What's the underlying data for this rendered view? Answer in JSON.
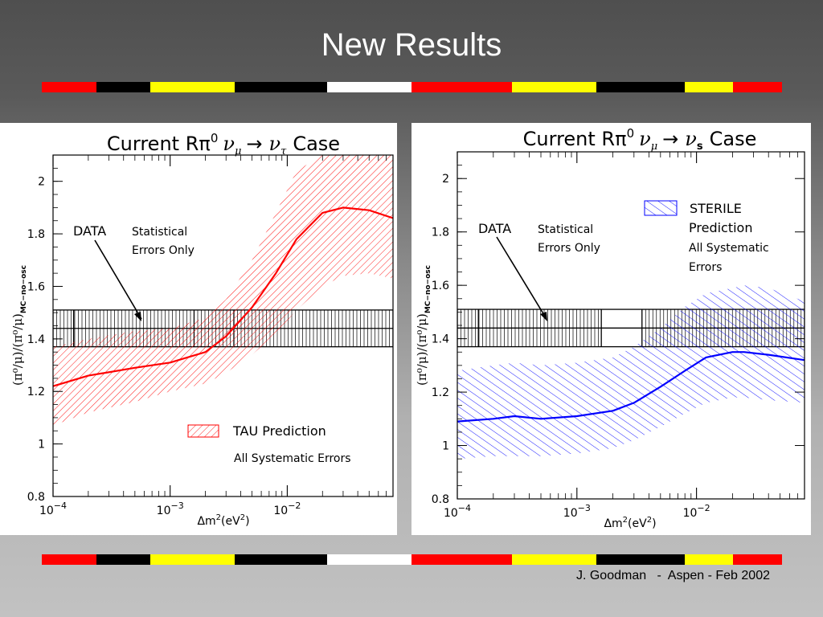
{
  "slide": {
    "title": "New Results",
    "footer": "J. Goodman   -  Aspen - Feb 2002",
    "stripe_colors": [
      "#ff0000",
      "#000000",
      "#ffff00",
      "#ffffff"
    ]
  },
  "chart_data": [
    {
      "type": "line",
      "title": "Current Rπ⁰ νμ → ντ Case",
      "title_parts": {
        "prefix": "Current Rπ",
        "sup": "0",
        "nu1": "ν",
        "sub1": "μ",
        "arrow": "→",
        "nu2": "ν",
        "sub2": "τ",
        "suffix": "Case"
      },
      "xlabel": "Δm²(eV²)",
      "xlabel_parts": {
        "delta": "Δm",
        "sup1": "2",
        "mid": "(eV",
        "sup2": "2",
        "end": ")"
      },
      "ylabel": "(π⁰/μ)/(π⁰/μ)MC−no−osc",
      "ylabel_parts": {
        "main": "(π⁰/μ)/(π⁰/μ)",
        "sub": "MC−no−osc"
      },
      "x_scale": "log",
      "xlim": [
        0.0001,
        0.08
      ],
      "ylim": [
        0.8,
        2.1
      ],
      "x_ticks": [
        {
          "base": "10",
          "exp": "−4",
          "value": 0.0001
        },
        {
          "base": "10",
          "exp": "−3",
          "value": 0.001
        },
        {
          "base": "10",
          "exp": "−2",
          "value": 0.01
        }
      ],
      "y_ticks": [
        "0.8",
        "1",
        "1.2",
        "1.4",
        "1.6",
        "1.8",
        "2"
      ],
      "data_band": {
        "y": 1.44,
        "ylow": 1.37,
        "yhigh": 1.51,
        "blank_ranges": [],
        "label": "DATA",
        "note_lines": [
          "Statistical",
          "Errors Only"
        ]
      },
      "series": [
        {
          "name": "TAU Prediction",
          "color": "#ff0000",
          "x": [
            0.0001,
            0.0002,
            0.0005,
            0.001,
            0.002,
            0.003,
            0.005,
            0.008,
            0.012,
            0.02,
            0.03,
            0.05,
            0.08
          ],
          "y": [
            1.22,
            1.26,
            1.29,
            1.31,
            1.35,
            1.41,
            1.52,
            1.65,
            1.78,
            1.88,
            1.9,
            1.89,
            1.86
          ],
          "band_low": [
            1.07,
            1.12,
            1.16,
            1.2,
            1.23,
            1.27,
            1.34,
            1.42,
            1.51,
            1.6,
            1.64,
            1.65,
            1.63
          ],
          "band_high": [
            1.37,
            1.4,
            1.43,
            1.44,
            1.48,
            1.55,
            1.7,
            1.88,
            2.04,
            2.1,
            2.1,
            2.1,
            2.1
          ]
        }
      ],
      "legend": {
        "label": "TAU Prediction",
        "note": "All Systematic Errors",
        "placement": "bottom-right"
      }
    },
    {
      "type": "line",
      "title": "Current Rπ⁰ νμ → νs Case",
      "title_parts": {
        "prefix": "Current Rπ",
        "sup": "0",
        "nu1": "ν",
        "sub1": "μ",
        "arrow": "→",
        "nu2": "ν",
        "sub2": "s",
        "suffix": "Case"
      },
      "xlabel": "Δm²(eV²)",
      "xlabel_parts": {
        "delta": "Δm",
        "sup1": "2",
        "mid": "(eV",
        "sup2": "2",
        "end": ")"
      },
      "ylabel": "(π⁰/μ)/(π⁰/μ)MC−no−osc",
      "ylabel_parts": {
        "main": "(π⁰/μ)/(π⁰/μ)",
        "sub": "MC−no−osc"
      },
      "x_scale": "log",
      "xlim": [
        0.0001,
        0.08
      ],
      "ylim": [
        0.8,
        2.1
      ],
      "x_ticks": [
        {
          "base": "10",
          "exp": "−4",
          "value": 0.0001
        },
        {
          "base": "10",
          "exp": "−3",
          "value": 0.001
        },
        {
          "base": "10",
          "exp": "−2",
          "value": 0.01
        }
      ],
      "y_ticks": [
        "0.8",
        "1",
        "1.2",
        "1.4",
        "1.6",
        "1.8",
        "2"
      ],
      "data_band": {
        "y": 1.44,
        "ylow": 1.37,
        "yhigh": 1.51,
        "blank_ranges": [
          [
            0.0016,
            0.0035
          ]
        ],
        "label": "DATA",
        "note_lines": [
          "Statistical",
          "Errors Only"
        ]
      },
      "series": [
        {
          "name": "STERILE Prediction",
          "color": "#0000ff",
          "x": [
            0.0001,
            0.0002,
            0.0003,
            0.0005,
            0.001,
            0.002,
            0.003,
            0.005,
            0.008,
            0.012,
            0.02,
            0.025,
            0.04,
            0.08
          ],
          "y": [
            1.09,
            1.1,
            1.11,
            1.1,
            1.11,
            1.13,
            1.16,
            1.22,
            1.28,
            1.33,
            1.35,
            1.35,
            1.34,
            1.32
          ],
          "band_low": [
            0.95,
            0.96,
            0.96,
            0.96,
            0.97,
            0.99,
            1.02,
            1.07,
            1.12,
            1.16,
            1.18,
            1.18,
            1.17,
            1.16
          ],
          "band_high": [
            1.28,
            1.3,
            1.31,
            1.3,
            1.31,
            1.33,
            1.37,
            1.44,
            1.52,
            1.57,
            1.59,
            1.6,
            1.59,
            1.54
          ]
        }
      ],
      "legend": {
        "label_lines": [
          "STERILE",
          "Prediction"
        ],
        "note_lines": [
          "All Systematic",
          "Errors"
        ],
        "placement": "top-right"
      }
    }
  ]
}
